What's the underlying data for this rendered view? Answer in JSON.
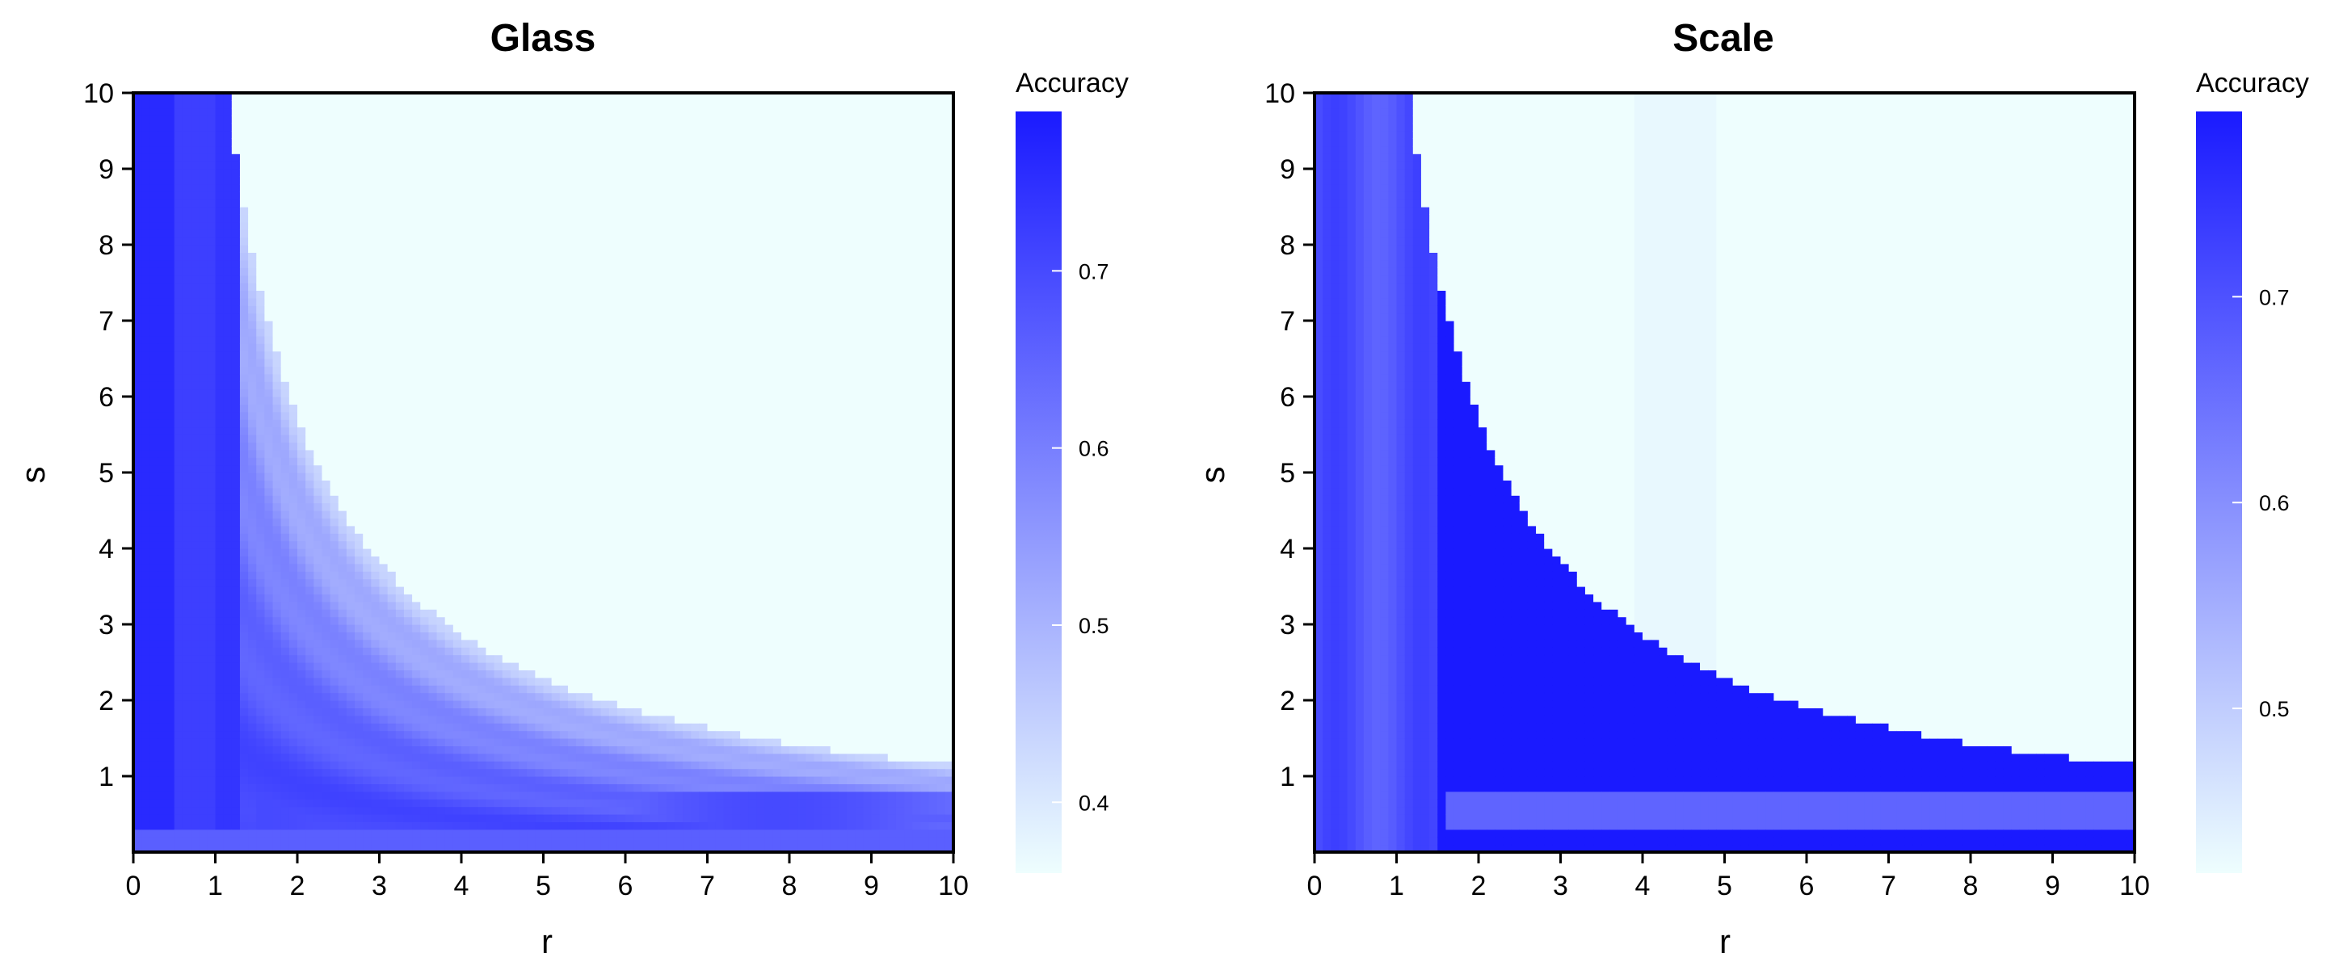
{
  "chart_data": [
    {
      "type": "heatmap",
      "title": "Glass",
      "xlabel": "r",
      "ylabel": "s",
      "x_ticks": [
        "0",
        "1",
        "2",
        "3",
        "4",
        "5",
        "6",
        "7",
        "8",
        "9",
        "10"
      ],
      "y_ticks": [
        "1",
        "2",
        "3",
        "4",
        "5",
        "6",
        "7",
        "8",
        "9",
        "10"
      ],
      "xlim": [
        0,
        10
      ],
      "ylim": [
        0,
        10
      ],
      "grid": false,
      "colorbar": {
        "title": "Accuracy",
        "ticks": [
          "0.4",
          "0.5",
          "0.6",
          "0.7"
        ],
        "tick_values": [
          0.4,
          0.5,
          0.6,
          0.7
        ],
        "min": 0.36,
        "max": 0.79,
        "color_low": "#eefefe",
        "color_high": "#1a1aff"
      },
      "boundary_rs_product": 11.5,
      "vertical_band_edges_r": [
        0.55,
        1.05,
        1.3
      ],
      "s_cap": 10.5,
      "accuracy_summary": {
        "outside_boundary": 0.36,
        "low_r_band": 0.76,
        "r_0.55_to_1.05": 0.72,
        "near_boundary": 0.45,
        "low_s_strip": 0.66
      }
    },
    {
      "type": "heatmap",
      "title": "Scale",
      "xlabel": "r",
      "ylabel": "s",
      "x_ticks": [
        "0",
        "1",
        "2",
        "3",
        "4",
        "5",
        "6",
        "7",
        "8",
        "9",
        "10"
      ],
      "y_ticks": [
        "1",
        "2",
        "3",
        "4",
        "5",
        "6",
        "7",
        "8",
        "9",
        "10"
      ],
      "xlim": [
        0,
        10
      ],
      "ylim": [
        0,
        10
      ],
      "grid": false,
      "colorbar": {
        "title": "Accuracy",
        "ticks": [
          "0.5",
          "0.6",
          "0.7"
        ],
        "tick_values": [
          0.5,
          0.6,
          0.7
        ],
        "min": 0.42,
        "max": 0.79,
        "color_low": "#eefefe",
        "color_high": "#1a1aff"
      },
      "boundary_rs_product": 11.5,
      "vertical_band_edges_r": [
        1.5,
        3.85,
        4.95
      ],
      "s_cap": 10.0,
      "accuracy_summary": {
        "outside_boundary": 0.42,
        "inside_main": 0.79,
        "low_r_band": 0.7,
        "low_s_strip": 0.67
      }
    }
  ]
}
